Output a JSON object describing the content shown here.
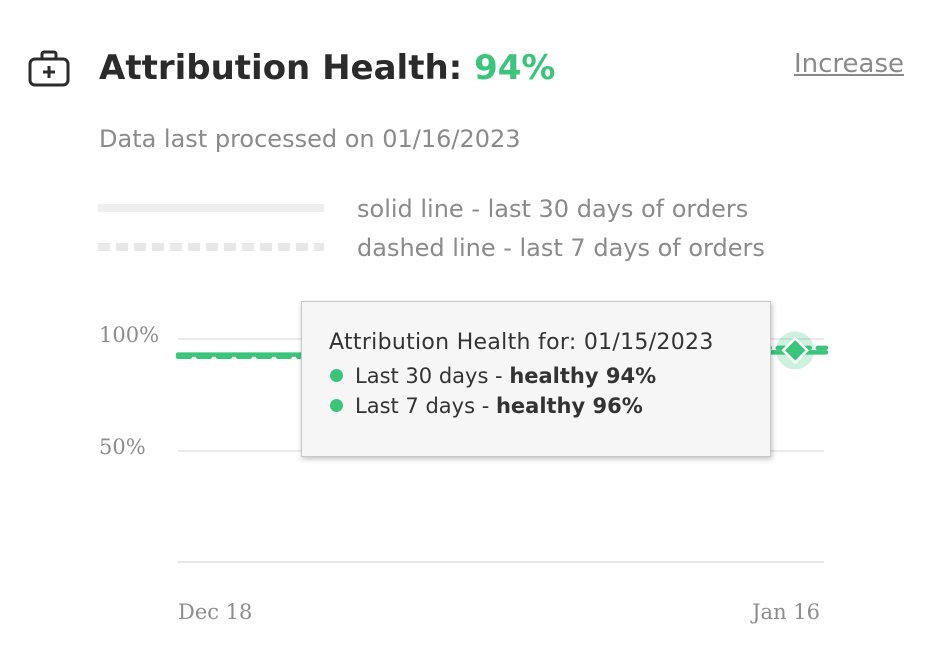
{
  "header": {
    "icon": "first-aid-kit-icon",
    "title_label": "Attribution Health:",
    "title_value": "94%",
    "increase_link": "Increase",
    "subtitle": "Data last processed on 01/16/2023"
  },
  "legend": {
    "solid_text": "solid line - last 30 days of orders",
    "dashed_text": "dashed line - last 7 days of orders"
  },
  "tooltip": {
    "title": "Attribution Health for: 01/15/2023",
    "row1_label": "Last 30 days - ",
    "row1_value": "healthy 94%",
    "row2_label": "Last 7 days - ",
    "row2_value": "healthy 96%"
  },
  "colors": {
    "accent": "#3cc47c",
    "title": "#2b2b2b",
    "muted": "#8a8a8a",
    "gridline": "#e3e3e3"
  },
  "chart_data": {
    "type": "line",
    "x_range": [
      "Dec 18",
      "Jan 16"
    ],
    "x_tick_labels": [
      "Dec 18",
      "Jan 16"
    ],
    "y_tick_labels": [
      "100%",
      "50%"
    ],
    "ylim": [
      0,
      100
    ],
    "grid": true,
    "series": [
      {
        "style": "solid",
        "color": "#3cc47c",
        "values": [
          93,
          93,
          93,
          93,
          94,
          94,
          94,
          94,
          94,
          94,
          94
        ]
      },
      {
        "style": "dashed",
        "color": "#3cc47c",
        "values": [
          92,
          92,
          92,
          93,
          95,
          95,
          96,
          96,
          96,
          96,
          96
        ]
      }
    ],
    "highlighted_point": {
      "x": "01/15/2023",
      "last_30_days": 94,
      "last_7_days": 96
    }
  }
}
